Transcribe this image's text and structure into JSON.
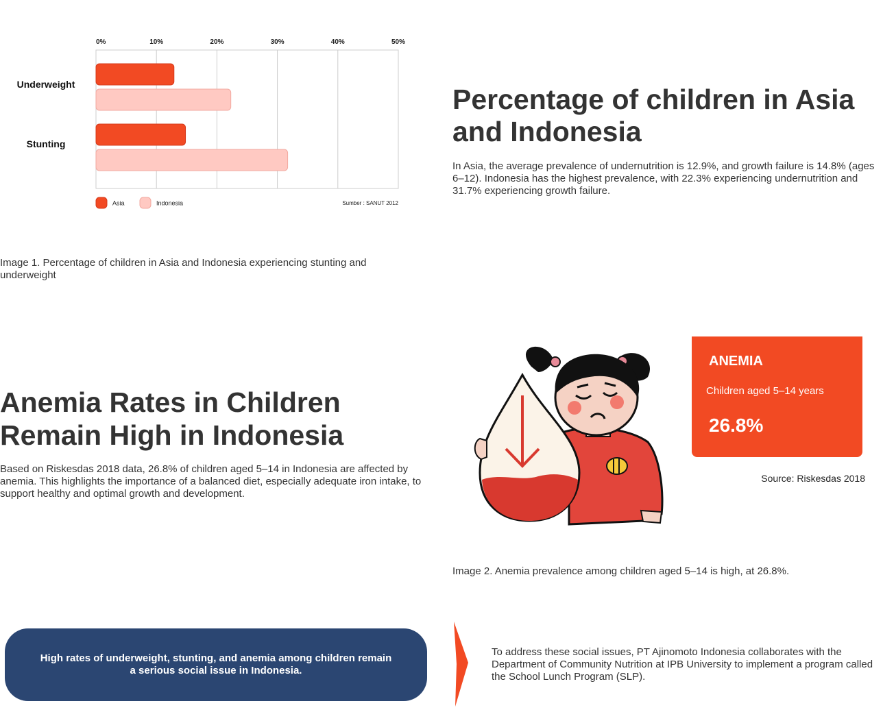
{
  "chart_data": {
    "type": "bar",
    "orientation": "horizontal",
    "categories": [
      "Underweight",
      "Stunting"
    ],
    "series": [
      {
        "name": "Asia",
        "values": [
          12.9,
          14.8
        ],
        "color": "#f24a23"
      },
      {
        "name": "Indonesia",
        "values": [
          22.3,
          31.7
        ],
        "color": "#ffc9c2"
      }
    ],
    "x_ticks": [
      "0%",
      "10%",
      "20%",
      "30%",
      "40%",
      "50%"
    ],
    "xlim": [
      0,
      50
    ],
    "x_axis_position": "top",
    "grid": true,
    "legend": "bottom-left",
    "source": "Sumber : SANUT 2012"
  },
  "captions": {
    "image1": "Image 1. Percentage of children in Asia and Indonesia experiencing stunting and underweight",
    "image2": "Image 2. Anemia prevalence among children aged 5–14 is high, at 26.8%."
  },
  "section1": {
    "title": "Percentage of children in Asia and Indonesia",
    "body": "In Asia, the average prevalence of undernutrition is 12.9%, and growth failure is 14.8% (ages 6–12). Indonesia has the highest prevalence, with 22.3% experiencing undernutrition and 31.7% experiencing growth failure."
  },
  "section2": {
    "title": "Anemia Rates in Children Remain High in Indonesia",
    "body": "Based on Riskesdas 2018 data, 26.8% of children aged 5–14 in Indonesia are affected by anemia. This highlights the importance of a balanced diet, especially adequate iron intake, to support healthy and optimal growth and development."
  },
  "anemia_card": {
    "title": "ANEMIA",
    "subtitle": "Children aged 5–14 years",
    "value": "26.8%",
    "source": "Source: Riskesdas 2018",
    "color": "#f24a23"
  },
  "illustration": {
    "icon": "sad-girl-holding-blood-drop-icon"
  },
  "highlight": {
    "text": "High rates of underweight, stunting, and anemia among children remain a serious social issue in Indonesia.",
    "color": "#2b4672"
  },
  "section3": {
    "body": "To address these social issues, PT Ajinomoto Indonesia collaborates with the Department of Community Nutrition at IPB University to implement a program called the School Lunch Program (SLP)."
  }
}
